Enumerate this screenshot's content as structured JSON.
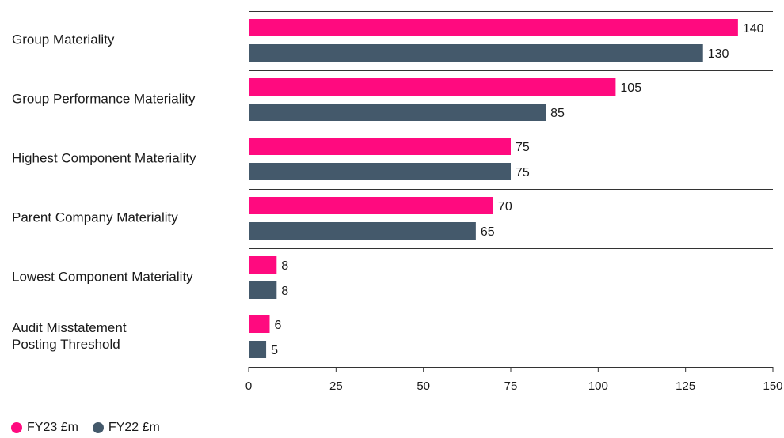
{
  "chart_data": {
    "type": "bar",
    "orientation": "horizontal",
    "categories": [
      [
        "Group Materiality"
      ],
      [
        "Group Performance Materiality"
      ],
      [
        "Highest Component Materiality"
      ],
      [
        "Parent Company Materiality"
      ],
      [
        "Lowest Component Materiality"
      ],
      [
        "Audit Misstatement",
        "Posting Threshold"
      ]
    ],
    "series": [
      {
        "name": "FY23 £m",
        "color": "#ff0a7f",
        "values": [
          140,
          105,
          75,
          70,
          8,
          6
        ]
      },
      {
        "name": "FY22 £m",
        "color": "#44596b",
        "values": [
          130,
          85,
          75,
          65,
          8,
          5
        ]
      }
    ],
    "xlim": [
      0,
      150
    ],
    "xticks": [
      0,
      25,
      50,
      75,
      100,
      125,
      150
    ],
    "grid": "category separators",
    "legend_position": "bottom-left"
  }
}
